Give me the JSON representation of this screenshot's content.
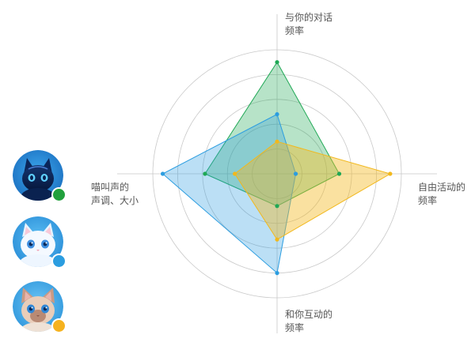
{
  "chart_data": {
    "type": "radar",
    "axes": [
      {
        "label_lines": [
          "与你的对话",
          "频率"
        ]
      },
      {
        "label_lines": [
          "自由活动的",
          "频率"
        ]
      },
      {
        "label_lines": [
          "和你互动的",
          "频率"
        ]
      },
      {
        "label_lines": [
          "喵叫声的",
          "声调、大小"
        ]
      }
    ],
    "range": [
      0,
      1
    ],
    "grid_rings": 5,
    "series": [
      {
        "color": "#1fa855",
        "values": [
          0.9,
          0.5,
          0.26,
          0.58
        ]
      },
      {
        "color": "#2b9de0",
        "values": [
          0.48,
          0.15,
          0.8,
          0.92
        ]
      },
      {
        "color": "#f2b81c",
        "values": [
          0.26,
          0.91,
          0.53,
          0.34
        ]
      }
    ]
  },
  "cats": [
    {
      "icon": "blue-robot-cat-avatar",
      "dot_color": "#21a03c"
    },
    {
      "icon": "white-fluffy-cat-avatar",
      "dot_color": "#2b9de0"
    },
    {
      "icon": "siamese-cat-avatar",
      "dot_color": "#f5b21f"
    }
  ]
}
